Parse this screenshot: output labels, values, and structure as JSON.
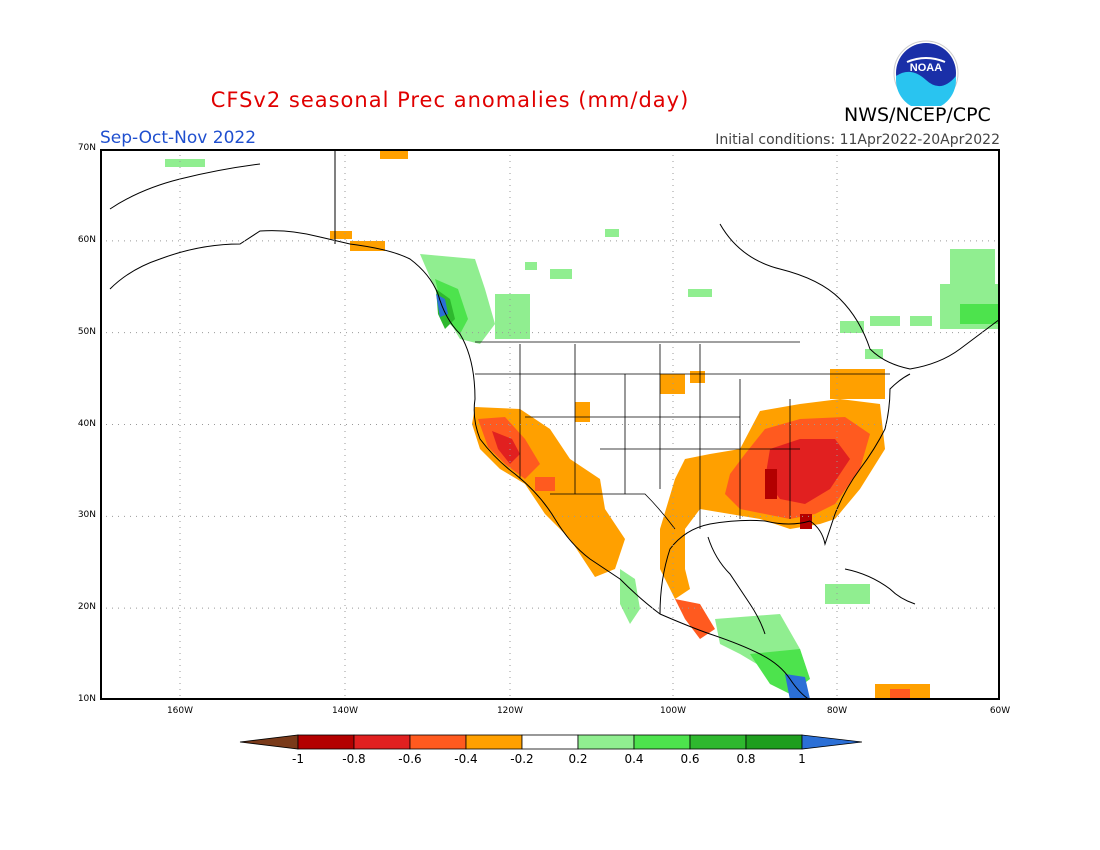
{
  "title": "CFSv2 seasonal Prec anomalies (mm/day)",
  "season": "Sep-Oct-Nov 2022",
  "initial_conditions": "Initial conditions: 11Apr2022-20Apr2022",
  "agency": "NWS/NCEP/CPC",
  "logo_text": "NOAA",
  "map": {
    "lat_labels": [
      "70N",
      "60N",
      "50N",
      "40N",
      "30N",
      "20N",
      "10N"
    ],
    "lon_labels": [
      "160W",
      "140W",
      "120W",
      "100W",
      "80W",
      "60W"
    ],
    "grid": true
  },
  "legend": {
    "ticks": [
      "-1",
      "-0.8",
      "-0.6",
      "-0.4",
      "-0.2",
      "0.2",
      "0.4",
      "0.6",
      "0.8",
      "1"
    ],
    "colors": [
      "#7a3a1a",
      "#b30000",
      "#e12020",
      "#ff5a1f",
      "#ffa000",
      "#ffffff",
      "#90ee90",
      "#4de34d",
      "#2eb82e",
      "#1e9e1e",
      "#2b6fd6"
    ]
  },
  "colors": {
    "dry_strong": "#b30000",
    "dry": "#e12020",
    "dry_moderate": "#ff5a1f",
    "dry_light": "#ffa000",
    "wet_light": "#90ee90",
    "wet": "#4de34d",
    "wet_strong": "#1e9e1e",
    "very_wet": "#2b6fd6"
  }
}
